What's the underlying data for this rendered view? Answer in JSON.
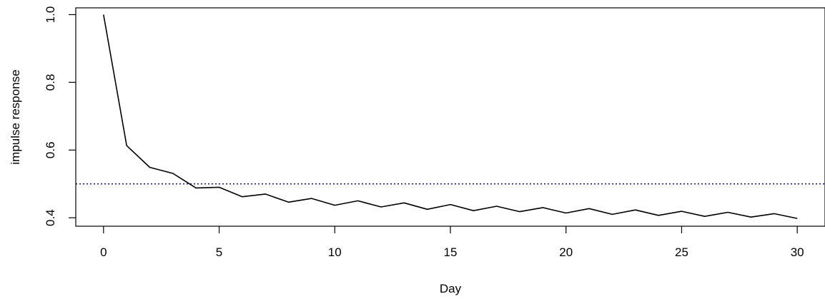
{
  "chart_data": {
    "type": "line",
    "title": "",
    "xlabel": "Day",
    "ylabel": "impulse response",
    "xlim": [
      -1.2,
      31.2
    ],
    "ylim": [
      0.375,
      1.02
    ],
    "x_ticks": [
      0,
      5,
      10,
      15,
      20,
      25,
      30
    ],
    "x_tick_labels": [
      "0",
      "5",
      "10",
      "15",
      "20",
      "25",
      "30"
    ],
    "y_ticks": [
      0.4,
      0.6,
      0.8,
      1.0
    ],
    "y_tick_labels": [
      "0.4",
      "0.6",
      "0.8",
      "1.0"
    ],
    "grid": false,
    "box": true,
    "series": [
      {
        "x": [
          0,
          1,
          2,
          3,
          4,
          5,
          6,
          7,
          8,
          9,
          10,
          11,
          12,
          13,
          14,
          15,
          16,
          17,
          18,
          19,
          20,
          21,
          22,
          23,
          24,
          25,
          26,
          27,
          28,
          29,
          30
        ],
        "values": [
          1.0,
          0.613,
          0.549,
          0.531,
          0.488,
          0.49,
          0.462,
          0.47,
          0.446,
          0.457,
          0.437,
          0.45,
          0.432,
          0.444,
          0.425,
          0.439,
          0.421,
          0.434,
          0.418,
          0.43,
          0.414,
          0.427,
          0.41,
          0.423,
          0.407,
          0.419,
          0.404,
          0.416,
          0.402,
          0.412,
          0.398
        ],
        "color": "#000000",
        "style": "solid"
      }
    ],
    "reference_lines": [
      {
        "orientation": "horizontal",
        "value": 0.5,
        "color": "#00008b",
        "style": "dotted"
      }
    ]
  }
}
